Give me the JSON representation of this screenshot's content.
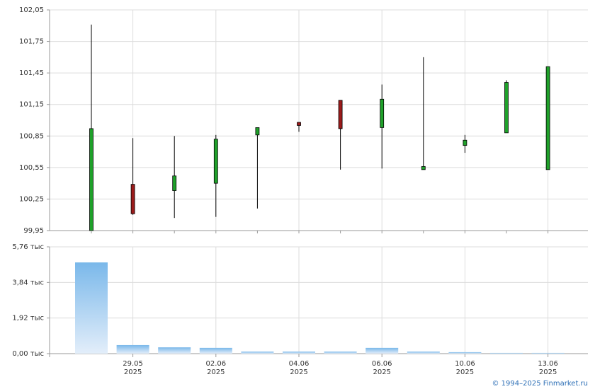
{
  "chart_data": [
    {
      "type": "candlestick",
      "categories": [
        null,
        "29.05",
        null,
        "02.06",
        null,
        "04.06",
        null,
        "06.06",
        null,
        "10.06",
        null,
        "13.06"
      ],
      "category_years": [
        null,
        "2025",
        null,
        "2025",
        null,
        "2025",
        null,
        "2025",
        null,
        "2025",
        null,
        "2025"
      ],
      "open": [
        99.95,
        100.39,
        100.33,
        100.4,
        100.86,
        100.98,
        101.19,
        100.93,
        100.53,
        100.76,
        100.88,
        100.53
      ],
      "high": [
        101.91,
        100.83,
        100.85,
        100.86,
        100.93,
        100.98,
        101.19,
        101.34,
        101.6,
        100.86,
        101.38,
        101.51
      ],
      "low": [
        99.95,
        100.1,
        100.07,
        100.08,
        100.16,
        100.89,
        100.53,
        100.54,
        100.53,
        100.69,
        100.88,
        100.53
      ],
      "close": [
        100.92,
        100.11,
        100.47,
        100.82,
        100.93,
        100.95,
        100.92,
        101.2,
        100.56,
        100.81,
        101.36,
        101.51
      ],
      "up_color": "#1fa12a",
      "down_color": "#9b1b1b",
      "ylim": [
        99.95,
        102.05
      ],
      "yticks": [
        {
          "value": 99.95,
          "label": "99,95"
        },
        {
          "value": 100.25,
          "label": "100,25"
        },
        {
          "value": 100.55,
          "label": "100,55"
        },
        {
          "value": 100.85,
          "label": "100,85"
        },
        {
          "value": 101.15,
          "label": "101,15"
        },
        {
          "value": 101.45,
          "label": "101,45"
        },
        {
          "value": 101.75,
          "label": "101,75"
        },
        {
          "value": 102.05,
          "label": "102,05"
        }
      ],
      "grid": true
    },
    {
      "type": "bar",
      "values": [
        4.92,
        0.46,
        0.34,
        0.31,
        0.11,
        0.11,
        0.11,
        0.31,
        0.11,
        0.08,
        0.04,
        0.04
      ],
      "color": "#7ab8ea",
      "ylim": [
        0,
        5.76
      ],
      "yticks": [
        {
          "value": 0,
          "label": "0,00 тыс"
        },
        {
          "value": 1.92,
          "label": "1,92 тыс"
        },
        {
          "value": 3.84,
          "label": "3,84 тыс"
        },
        {
          "value": 5.76,
          "label": "5,76 тыс"
        }
      ],
      "grid": true
    }
  ],
  "footer": "© 1994–2025 Finmarket.ru"
}
